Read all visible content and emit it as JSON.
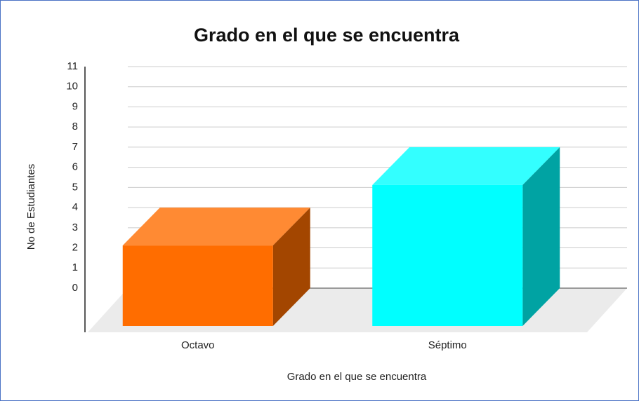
{
  "chart_data": {
    "type": "bar3d",
    "title": "Grado en el que se encuentra",
    "x_label": "Grado en el que se encuentra",
    "y_label": "No de Estudiantes",
    "categories": [
      "Octavo",
      "Séptimo"
    ],
    "values": [
      4,
      7
    ],
    "colors": [
      "#ff6d00",
      "#00ffff"
    ],
    "ylim": [
      0,
      11
    ],
    "yticks": [
      0,
      1,
      2,
      3,
      4,
      5,
      6,
      7,
      8,
      9,
      10,
      11
    ],
    "grid": true
  }
}
